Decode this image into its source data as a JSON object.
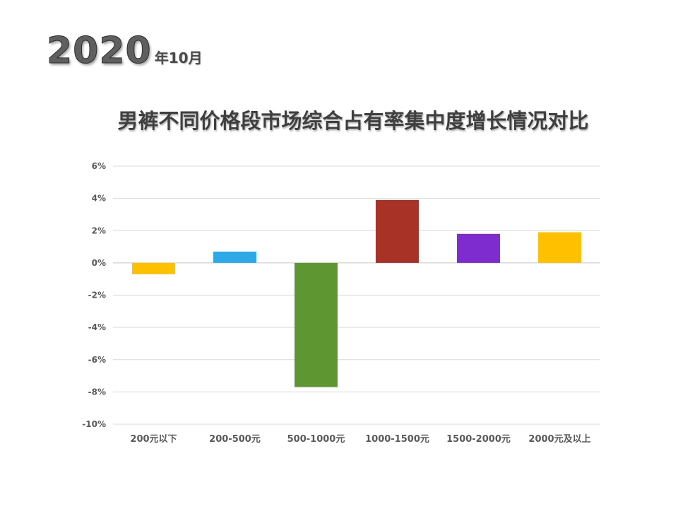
{
  "header": {
    "year": "2020",
    "month": "年10月"
  },
  "chart_data": {
    "type": "bar",
    "title": "男裤不同价格段市场综合占有率集中度增长情况对比",
    "categories": [
      "200元以下",
      "200-500元",
      "500-1000元",
      "1000-1500元",
      "1500-2000元",
      "2000元及以上"
    ],
    "values": [
      -0.7,
      0.7,
      -7.7,
      3.9,
      1.8,
      1.9
    ],
    "colors": [
      "#FFC000",
      "#2EA8E6",
      "#5E9732",
      "#A93226",
      "#7E2BD0",
      "#FFC000"
    ],
    "ylim": [
      -10,
      6
    ],
    "yticks": [
      6,
      4,
      2,
      0,
      -2,
      -4,
      -6,
      -8,
      -10
    ],
    "ytick_labels": [
      "6%",
      "4%",
      "2%",
      "0%",
      "-2%",
      "-4%",
      "-6%",
      "-8%",
      "-10%"
    ],
    "value_unit": "%",
    "grid": true,
    "legend": "none",
    "xlabel": "",
    "ylabel": ""
  }
}
